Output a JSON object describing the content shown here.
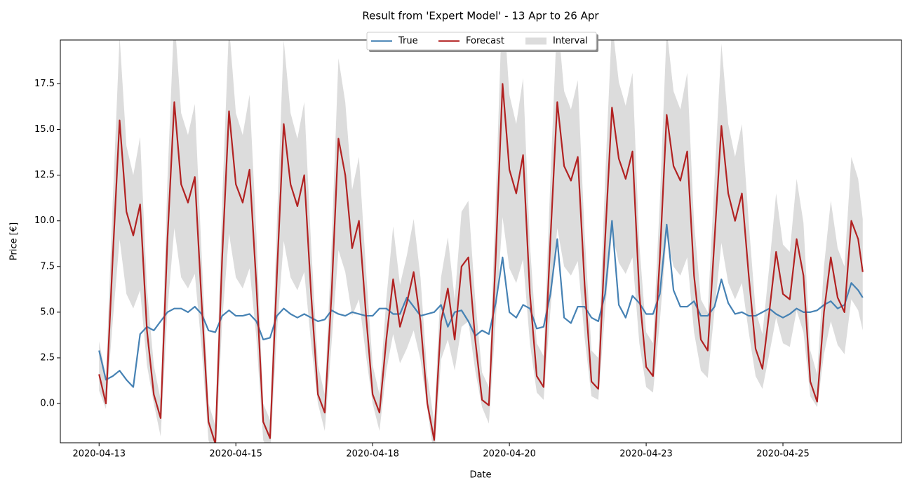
{
  "chart_data": {
    "type": "line",
    "title": "Result from 'Expert Model' - 13 Apr to 26 Apr",
    "x_label": "Date",
    "y_label": "Price [€]",
    "x": [
      0,
      3,
      6,
      9,
      12,
      15,
      18,
      21,
      24,
      27,
      30,
      33,
      36,
      39,
      42,
      45,
      48,
      51,
      54,
      57,
      60,
      63,
      66,
      69,
      72,
      75,
      78,
      81,
      84,
      87,
      90,
      93,
      96,
      99,
      102,
      105,
      108,
      111,
      114,
      117,
      120,
      123,
      126,
      129,
      132,
      135,
      138,
      141,
      144,
      147,
      150,
      153,
      156,
      159,
      162,
      165,
      168,
      171,
      174,
      177,
      180,
      183,
      186,
      189,
      192,
      195,
      198,
      201,
      204,
      207,
      210,
      213,
      216,
      219,
      222,
      225,
      228,
      231,
      234,
      237,
      240,
      243,
      246,
      249,
      252,
      255,
      258,
      261,
      264,
      267,
      270,
      273,
      276,
      279,
      282,
      285,
      288,
      291,
      294,
      297,
      300,
      303,
      306,
      309,
      312,
      315,
      318,
      321,
      324,
      327,
      330,
      333,
      335
    ],
    "xlim": [
      -17,
      352
    ],
    "xticks": [
      {
        "value": 0,
        "label": "2020-04-13"
      },
      {
        "value": 60,
        "label": "2020-04-15"
      },
      {
        "value": 120,
        "label": "2020-04-18"
      },
      {
        "value": 180,
        "label": "2020-04-20"
      },
      {
        "value": 240,
        "label": "2020-04-23"
      },
      {
        "value": 300,
        "label": "2020-04-25"
      }
    ],
    "ylim": [
      -2.15,
      19.9
    ],
    "yticks": [
      {
        "value": 0,
        "label": "0.0"
      },
      2.5,
      {
        "value": 5,
        "label": "5.0"
      },
      7.5,
      {
        "value": 10,
        "label": "10.0"
      },
      12.5,
      {
        "value": 15,
        "label": "15.0"
      },
      17.5
    ],
    "grid": false,
    "legend": "top",
    "series": [
      {
        "name": "True",
        "color": "#4682b4",
        "values": [
          2.9,
          1.3,
          1.5,
          1.8,
          1.3,
          0.9,
          3.8,
          4.2,
          4.0,
          4.5,
          5.0,
          5.2,
          5.2,
          5.0,
          5.3,
          4.9,
          4.0,
          3.9,
          4.8,
          5.1,
          4.8,
          4.8,
          4.9,
          4.5,
          3.5,
          3.6,
          4.8,
          5.2,
          4.9,
          4.7,
          4.9,
          4.7,
          4.5,
          4.6,
          5.1,
          4.9,
          4.8,
          5.0,
          4.9,
          4.8,
          4.8,
          5.2,
          5.2,
          4.9,
          4.9,
          5.8,
          5.3,
          4.8,
          4.9,
          5.0,
          5.4,
          4.2,
          5.0,
          5.1,
          4.5,
          3.7,
          4.0,
          3.8,
          5.5,
          8.0,
          5.0,
          4.7,
          5.4,
          5.2,
          4.1,
          4.2,
          6.0,
          9.0,
          4.7,
          4.4,
          5.3,
          5.3,
          4.7,
          4.5,
          6.0,
          10.0,
          5.4,
          4.7,
          5.9,
          5.5,
          4.9,
          4.9,
          6.0,
          9.8,
          6.2,
          5.3,
          5.3,
          5.6,
          4.8,
          4.8,
          5.3,
          6.8,
          5.5,
          4.9,
          5.0,
          4.8,
          4.8,
          5.0,
          5.2,
          4.9,
          4.7,
          4.9,
          5.2,
          5.0,
          5.0,
          5.1,
          5.4,
          5.6,
          5.2,
          5.4,
          6.6,
          6.2,
          5.8
        ]
      },
      {
        "name": "Forecast",
        "color": "#b22222",
        "values": [
          1.6,
          0,
          8,
          15.5,
          10.5,
          9.2,
          10.9,
          4.0,
          0.5,
          -0.8,
          9,
          16.5,
          12,
          11,
          12.4,
          5.5,
          -1,
          -2.2,
          8,
          16,
          12,
          11,
          12.8,
          6.5,
          -1,
          -1.9,
          7,
          15.3,
          12,
          10.8,
          12.5,
          6,
          0.5,
          -0.5,
          6,
          14.5,
          12.5,
          8.5,
          10,
          5,
          0.5,
          -0.5,
          3.5,
          6.8,
          4.2,
          5.5,
          7.2,
          4.5,
          0,
          -2,
          4.5,
          6.3,
          3.5,
          7.5,
          8,
          3.5,
          0.2,
          -0.1,
          8,
          17.5,
          12.8,
          11.5,
          13.6,
          6,
          1.5,
          0.9,
          9,
          16.5,
          13,
          12.2,
          13.5,
          6.5,
          1.2,
          0.8,
          9,
          16.2,
          13.4,
          12.3,
          13.8,
          6,
          2,
          1.5,
          8,
          15.8,
          13,
          12.2,
          13.8,
          7,
          3.5,
          2.9,
          9,
          15.2,
          11.5,
          10,
          11.5,
          7,
          3,
          1.9,
          5,
          8.3,
          6,
          5.7,
          9,
          7,
          1.2,
          0.1,
          5,
          8,
          5.8,
          5,
          10,
          9.0,
          7.2
        ]
      }
    ],
    "interval": {
      "name": "Interval",
      "color": "#dcdcdc",
      "upper": [
        3.4,
        1.5,
        11.1,
        20.1,
        14.1,
        12.5,
        14.6,
        6.3,
        2.1,
        0.2,
        12.3,
        21.3,
        15.9,
        14.7,
        16.4,
        8.1,
        0,
        -1.2,
        11.1,
        20.7,
        15.9,
        14.7,
        16.9,
        9.3,
        0,
        -0.9,
        9.9,
        19.9,
        15.9,
        14.5,
        16.5,
        8.7,
        2.1,
        0.5,
        8.7,
        18.9,
        16.5,
        11.7,
        13.5,
        7.5,
        2.1,
        0.5,
        5.7,
        9.7,
        6.5,
        8.1,
        10.1,
        6.9,
        1.5,
        -1,
        6.9,
        9.1,
        5.7,
        10.5,
        11.1,
        5.7,
        1.7,
        0.9,
        11.1,
        22.5,
        16.9,
        15.3,
        17.8,
        8.7,
        3.3,
        2.6,
        12.3,
        21.3,
        17.1,
        16.1,
        17.7,
        9.3,
        2.9,
        2.5,
        12.3,
        20.9,
        17.6,
        16.3,
        18.1,
        8.7,
        3.9,
        3.3,
        11.1,
        20.5,
        17.1,
        16.1,
        18.1,
        9.9,
        5.7,
        5.0,
        12.3,
        19.7,
        15.3,
        13.5,
        15.3,
        9.9,
        5.1,
        3.8,
        7.5,
        11.5,
        8.7,
        8.3,
        12.3,
        9.9,
        2.9,
        1.6,
        7.5,
        11.1,
        8.5,
        7.5,
        13.5,
        12.3,
        10.1
      ],
      "lower": [
        0.7,
        -0.3,
        4.5,
        9.0,
        6.0,
        5.2,
        6.2,
        2.1,
        0,
        -1.8,
        5.1,
        9.6,
        6.9,
        6.3,
        7.1,
        3.0,
        -2,
        -3.2,
        4.5,
        9.3,
        6.9,
        6.3,
        7.4,
        3.6,
        -2,
        -2.9,
        3.9,
        8.9,
        6.9,
        6.2,
        7.2,
        3.3,
        0,
        -1.5,
        3.3,
        8.4,
        7.2,
        4.8,
        5.7,
        2.7,
        0,
        -1.5,
        1.8,
        3.8,
        2.2,
        3.0,
        4.0,
        2.4,
        -0.3,
        -3,
        2.4,
        3.5,
        1.8,
        4.2,
        4.5,
        1.8,
        -0.2,
        -1.1,
        4.5,
        10.2,
        7.4,
        6.6,
        7.9,
        3.3,
        0.6,
        0.2,
        5.1,
        9.6,
        7.5,
        7.0,
        7.8,
        3.6,
        0.4,
        0.2,
        5.1,
        9.4,
        7.7,
        7.1,
        8.0,
        3.3,
        0.9,
        0.6,
        4.5,
        9.2,
        7.5,
        7.0,
        8.0,
        3.9,
        1.8,
        1.4,
        5.1,
        8.8,
        6.6,
        5.7,
        6.6,
        3.9,
        1.5,
        0.8,
        2.7,
        4.7,
        3.3,
        3.1,
        5.1,
        3.9,
        0.4,
        -0.2,
        2.7,
        4.5,
        3.2,
        2.7,
        5.7,
        5.1,
        4.0
      ]
    }
  }
}
